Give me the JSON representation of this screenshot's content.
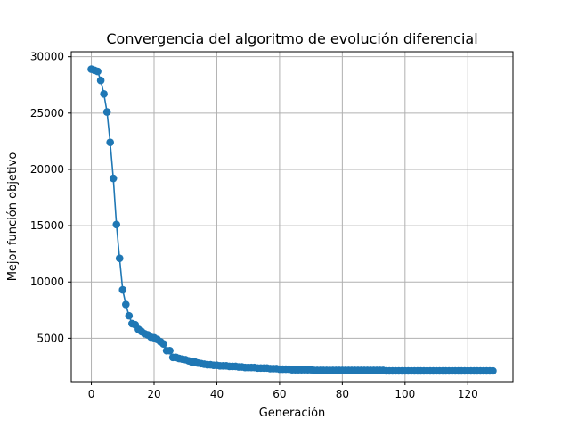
{
  "chart_data": {
    "type": "line",
    "title": "Convergencia del algoritmo de evolución diferencial",
    "xlabel": "Generación",
    "ylabel": "Mejor función objetivo",
    "xlim": [
      -6.4,
      134.4
    ],
    "ylim": [
      1150,
      30450
    ],
    "xticks": [
      0,
      20,
      40,
      60,
      80,
      100,
      120
    ],
    "yticks": [
      5000,
      10000,
      15000,
      20000,
      25000,
      30000
    ],
    "grid": true,
    "series": [
      {
        "color": "#1f77b4",
        "marker": "circle",
        "x": [
          0,
          1,
          2,
          3,
          4,
          5,
          6,
          7,
          8,
          9,
          10,
          11,
          12,
          13,
          14,
          15,
          16,
          17,
          18,
          19,
          20,
          21,
          22,
          23,
          24,
          25,
          26,
          27,
          28,
          29,
          30,
          31,
          32,
          33,
          34,
          35,
          36,
          37,
          38,
          39,
          40,
          41,
          42,
          43,
          44,
          45,
          46,
          47,
          48,
          49,
          50,
          51,
          52,
          53,
          54,
          55,
          56,
          57,
          58,
          59,
          60,
          61,
          62,
          63,
          64,
          65,
          66,
          67,
          68,
          69,
          70,
          71,
          72,
          73,
          74,
          75,
          76,
          77,
          78,
          79,
          80,
          81,
          82,
          83,
          84,
          85,
          86,
          87,
          88,
          89,
          90,
          91,
          92,
          93,
          94,
          95,
          96,
          97,
          98,
          99,
          100,
          101,
          102,
          103,
          104,
          105,
          106,
          107,
          108,
          109,
          110,
          111,
          112,
          113,
          114,
          115,
          116,
          117,
          118,
          119,
          120,
          121,
          122,
          123,
          124,
          125,
          126,
          127,
          128
        ],
        "y": [
          28900,
          28800,
          28700,
          27900,
          26700,
          25100,
          22400,
          19200,
          15100,
          12100,
          9300,
          8000,
          7000,
          6300,
          6200,
          5800,
          5600,
          5400,
          5300,
          5100,
          5050,
          4900,
          4700,
          4500,
          3900,
          3900,
          3300,
          3300,
          3200,
          3150,
          3100,
          3000,
          2900,
          2900,
          2800,
          2750,
          2700,
          2650,
          2650,
          2600,
          2600,
          2550,
          2550,
          2550,
          2500,
          2500,
          2500,
          2450,
          2450,
          2400,
          2400,
          2400,
          2400,
          2350,
          2350,
          2350,
          2350,
          2300,
          2300,
          2300,
          2250,
          2250,
          2250,
          2250,
          2200,
          2200,
          2200,
          2200,
          2200,
          2200,
          2200,
          2150,
          2150,
          2150,
          2150,
          2150,
          2150,
          2150,
          2150,
          2150,
          2150,
          2150,
          2150,
          2150,
          2150,
          2150,
          2150,
          2150,
          2150,
          2150,
          2150,
          2150,
          2150,
          2150,
          2100,
          2100,
          2100,
          2100,
          2100,
          2100,
          2100,
          2100,
          2100,
          2100,
          2100,
          2100,
          2100,
          2100,
          2100,
          2100,
          2100,
          2100,
          2100,
          2100,
          2100,
          2100,
          2100,
          2100,
          2100,
          2100,
          2100,
          2100,
          2100,
          2100,
          2100,
          2100,
          2100,
          2100,
          2100
        ]
      }
    ]
  }
}
